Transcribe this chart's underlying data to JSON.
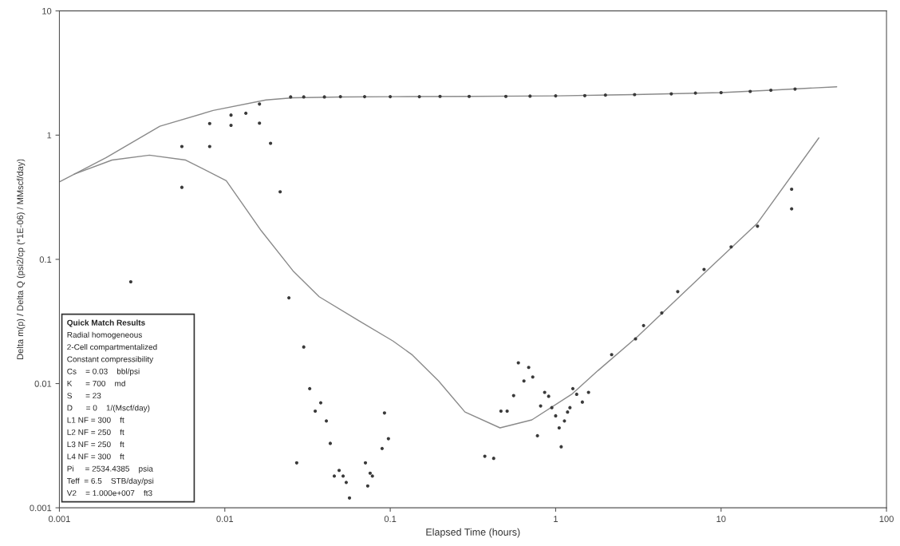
{
  "chart_data": {
    "type": "scatter",
    "xlabel": "Elapsed Time (hours)",
    "ylabel": "Delta m(p) / Delta Q (psi2/cp (*1E-06) / MMscf/day)",
    "log": "xy",
    "xlim": [
      0.001,
      100
    ],
    "ylim": [
      0.001,
      10
    ],
    "xticks": [
      0.001,
      0.01,
      0.1,
      1,
      10,
      100
    ],
    "yticks": [
      0.001,
      0.01,
      0.1,
      1,
      10
    ],
    "grid": false,
    "marker": "circle",
    "series": [
      {
        "color": "#3a3a3a",
        "x": [
          0.0055,
          0.0081,
          0.0081,
          0.0109,
          0.0109,
          0.0134,
          0.0162,
          0.0162,
          0.0189,
          0.025,
          0.03,
          0.04,
          0.05,
          0.07,
          0.1,
          0.15,
          0.2,
          0.3,
          0.5,
          0.7,
          1,
          1.5,
          2,
          3,
          5,
          7,
          10,
          15,
          20,
          28
        ],
        "values": [
          0.81,
          0.81,
          1.24,
          1.2,
          1.45,
          1.5,
          1.78,
          1.25,
          0.86,
          2.03,
          2.03,
          2.03,
          2.04,
          2.04,
          2.04,
          2.04,
          2.05,
          2.05,
          2.05,
          2.06,
          2.07,
          2.08,
          2.1,
          2.12,
          2.15,
          2.18,
          2.2,
          2.25,
          2.3,
          2.35
        ]
      },
      {
        "color": "#3a3a3a",
        "x": [
          0.0027,
          0.0055,
          0.0216,
          0.0244,
          0.03,
          0.0326,
          0.038,
          0.0352,
          0.0411,
          0.0434,
          0.0272,
          0.0491,
          0.0459,
          0.0519,
          0.0542,
          0.0567,
          0.0708,
          0.0756,
          0.078,
          0.0731,
          0.0923,
          0.0893,
          0.0975,
          0.373,
          0.422,
          0.467,
          0.509,
          0.557,
          0.595,
          0.643,
          0.687,
          0.727,
          0.776,
          0.811,
          0.858,
          0.907,
          0.948,
          1.0,
          1.05,
          1.08,
          1.13,
          1.18,
          1.22,
          1.27,
          1.34,
          1.45,
          1.58,
          2.18,
          3.04,
          3.4,
          4.38,
          5.47,
          7.89,
          11.5,
          16.6,
          26.7,
          26.7
        ],
        "values": [
          0.066,
          0.38,
          0.35,
          0.049,
          0.0197,
          0.0091,
          0.007,
          0.006,
          0.005,
          0.0033,
          0.0023,
          0.002,
          0.0018,
          0.0018,
          0.0016,
          0.0012,
          0.0023,
          0.0019,
          0.0018,
          0.0015,
          0.0058,
          0.003,
          0.0036,
          0.0026,
          0.0025,
          0.006,
          0.006,
          0.008,
          0.0147,
          0.0105,
          0.0135,
          0.0113,
          0.0038,
          0.0066,
          0.0085,
          0.0079,
          0.0064,
          0.0055,
          0.0044,
          0.0031,
          0.005,
          0.0059,
          0.0064,
          0.0091,
          0.0082,
          0.0071,
          0.0085,
          0.0171,
          0.0229,
          0.0293,
          0.037,
          0.055,
          0.083,
          0.126,
          0.185,
          0.367,
          0.255
        ]
      },
      {
        "type": "line",
        "color": "#8a8a8a",
        "marker": "none",
        "x": [
          0.001,
          0.00192,
          0.00405,
          0.0085,
          0.0177,
          0.0258,
          0.05,
          0.1,
          0.3,
          1,
          3,
          10,
          20,
          50
        ],
        "values": [
          0.42,
          0.66,
          1.18,
          1.58,
          1.92,
          2.0,
          2.03,
          2.04,
          2.05,
          2.07,
          2.12,
          2.2,
          2.3,
          2.45
        ]
      },
      {
        "type": "line",
        "color": "#8a8a8a",
        "marker": "none",
        "x": [
          0.00123,
          0.00208,
          0.0035,
          0.0058,
          0.0102,
          0.0166,
          0.0258,
          0.0372,
          0.0647,
          0.104,
          0.136,
          0.196,
          0.283,
          0.461,
          0.718,
          1.25,
          1.8,
          3.14,
          7.89,
          16.6,
          39
        ],
        "values": [
          0.485,
          0.63,
          0.69,
          0.63,
          0.43,
          0.17,
          0.081,
          0.05,
          0.032,
          0.022,
          0.017,
          0.0105,
          0.0059,
          0.0044,
          0.0051,
          0.0082,
          0.0127,
          0.024,
          0.077,
          0.196,
          0.95
        ]
      }
    ],
    "annotations": [
      "Quick Match Results",
      "Radial homogeneous",
      "2-Cell compartmentalized",
      "Constant compressibility",
      "Cs    = 0.03    bbl/psi",
      "K      = 700    md",
      "S      = 23",
      "D      = 0    1/(Mscf/day)",
      "L1 NF = 300    ft",
      "L2 NF = 250    ft",
      "L3 NF = 250    ft",
      "L4 NF = 300    ft",
      "Pi     = 2534.4385    psia",
      "Teff  = 6.5    STB/day/psi",
      "V2    = 1.000e+007    ft3"
    ]
  }
}
